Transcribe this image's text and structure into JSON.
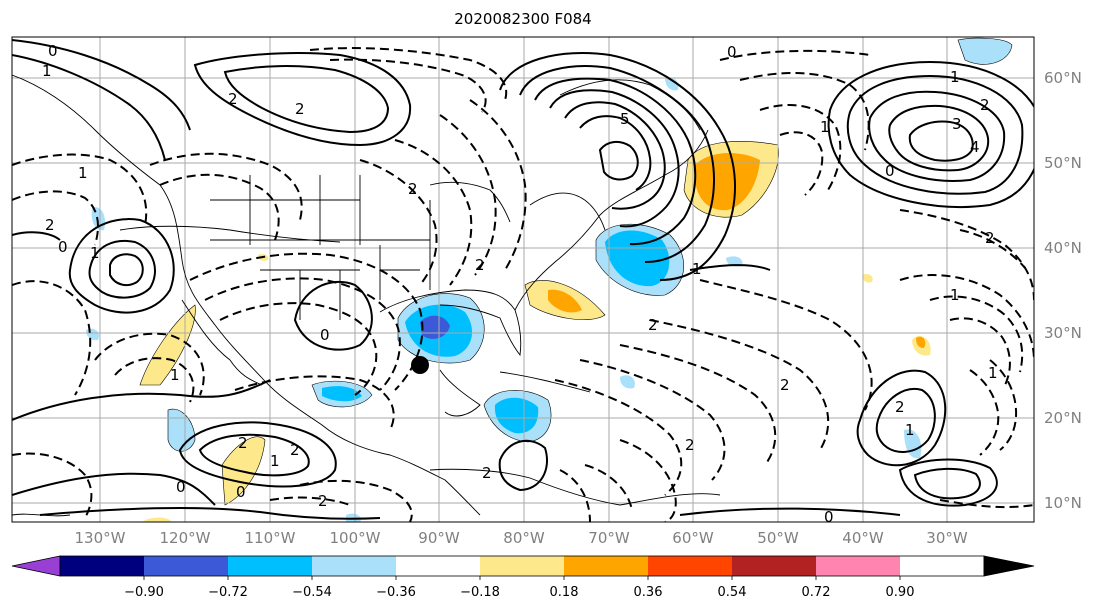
{
  "title": "2020082300 F084",
  "lat_labels": [
    "60°N",
    "50°N",
    "40°N",
    "30°N",
    "20°N",
    "10°N"
  ],
  "lon_labels": [
    "130°W",
    "120°W",
    "110°W",
    "100°W",
    "90°W",
    "80°W",
    "70°W",
    "60°W",
    "50°W",
    "40°W",
    "30°W"
  ],
  "colorbar": {
    "tick_labels": [
      "−0.90",
      "−0.72",
      "−0.54",
      "−0.36",
      "−0.18",
      "0.18",
      "0.36",
      "0.54",
      "0.72",
      "0.90"
    ],
    "colors": [
      "#9a3fd6",
      "#00007f",
      "#3c5ad8",
      "#00bfff",
      "#abe0fb",
      "#ffffff",
      "#fde98b",
      "#ffa500",
      "#ff4500",
      "#b22222",
      "#ff85b0"
    ]
  },
  "contour_labels": [
    "0",
    "1",
    "2",
    "2",
    "1",
    "2",
    "0",
    "1",
    "5",
    "0",
    "1",
    "1",
    "2",
    "3",
    "4",
    "0",
    "2",
    "2",
    "1",
    "2",
    "1",
    "0",
    "2",
    "2",
    "1",
    "0",
    "2",
    "0",
    "2",
    "1",
    "2",
    "2",
    "0",
    "2",
    "2",
    "1",
    "1"
  ],
  "marker": "storm-center-dot"
}
